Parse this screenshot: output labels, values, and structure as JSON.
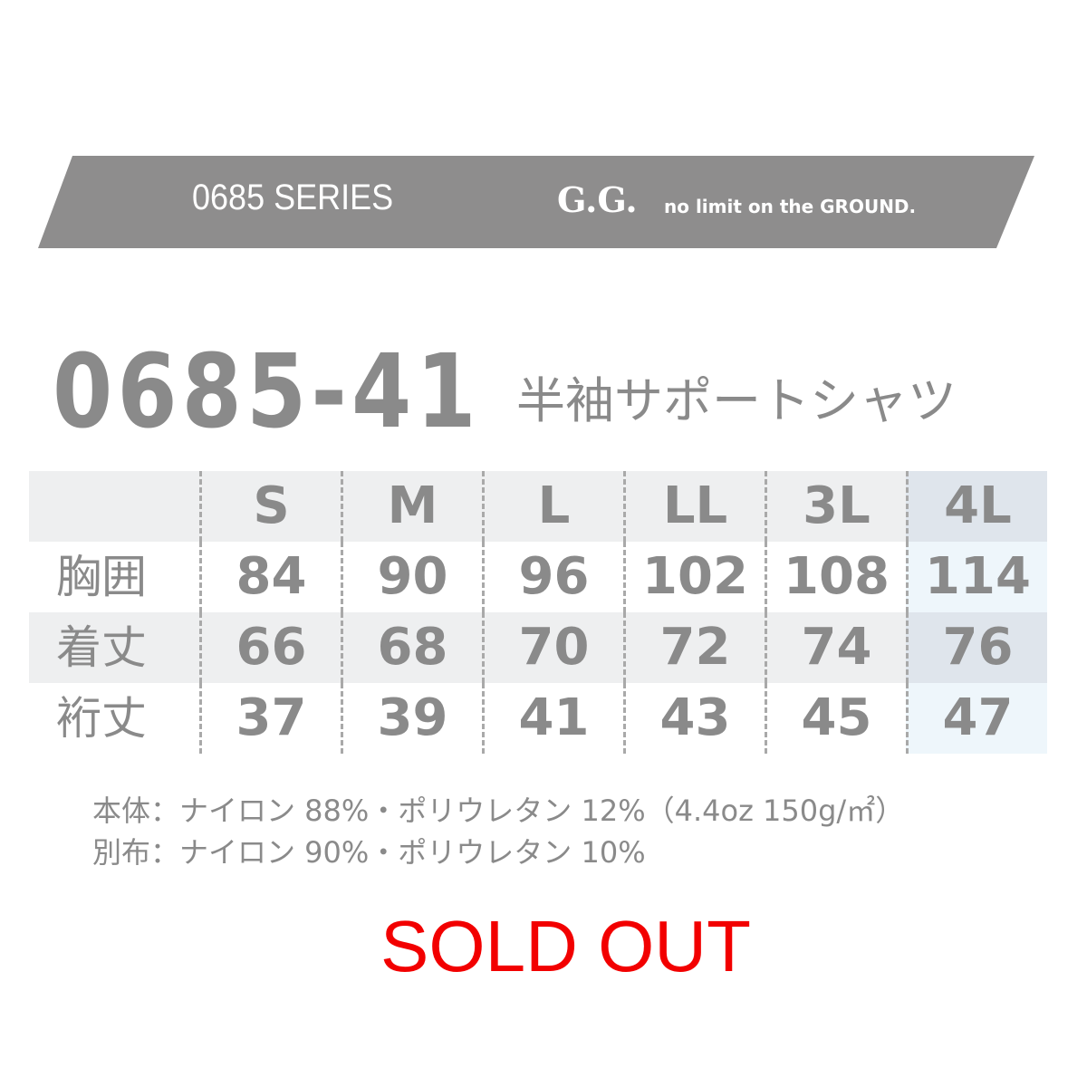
{
  "banner": {
    "series": "0685 SERIES",
    "logo": "G.G.",
    "tagline": "no limit on the GROUND.",
    "color": "#8e8d8d"
  },
  "product": {
    "model": "0685-41",
    "name": "半袖サポートシャツ"
  },
  "table": {
    "headers": [
      "S",
      "M",
      "L",
      "LL",
      "3L",
      "4L"
    ],
    "rows": [
      {
        "label": "胸囲",
        "values": [
          "84",
          "90",
          "96",
          "102",
          "108",
          "114"
        ]
      },
      {
        "label": "着丈",
        "values": [
          "66",
          "68",
          "70",
          "72",
          "74",
          "76"
        ]
      },
      {
        "label": "裄丈",
        "values": [
          "37",
          "39",
          "41",
          "43",
          "45",
          "47"
        ]
      }
    ]
  },
  "overlay": {
    "text": "SOLD OUT",
    "color": "#f20000"
  },
  "notes": [
    "本体：ナイロン 88%・ポリウレタン 12%（4.4oz 150g/㎡）",
    "別布：ナイロン 90%・ポリウレタン 10%"
  ]
}
